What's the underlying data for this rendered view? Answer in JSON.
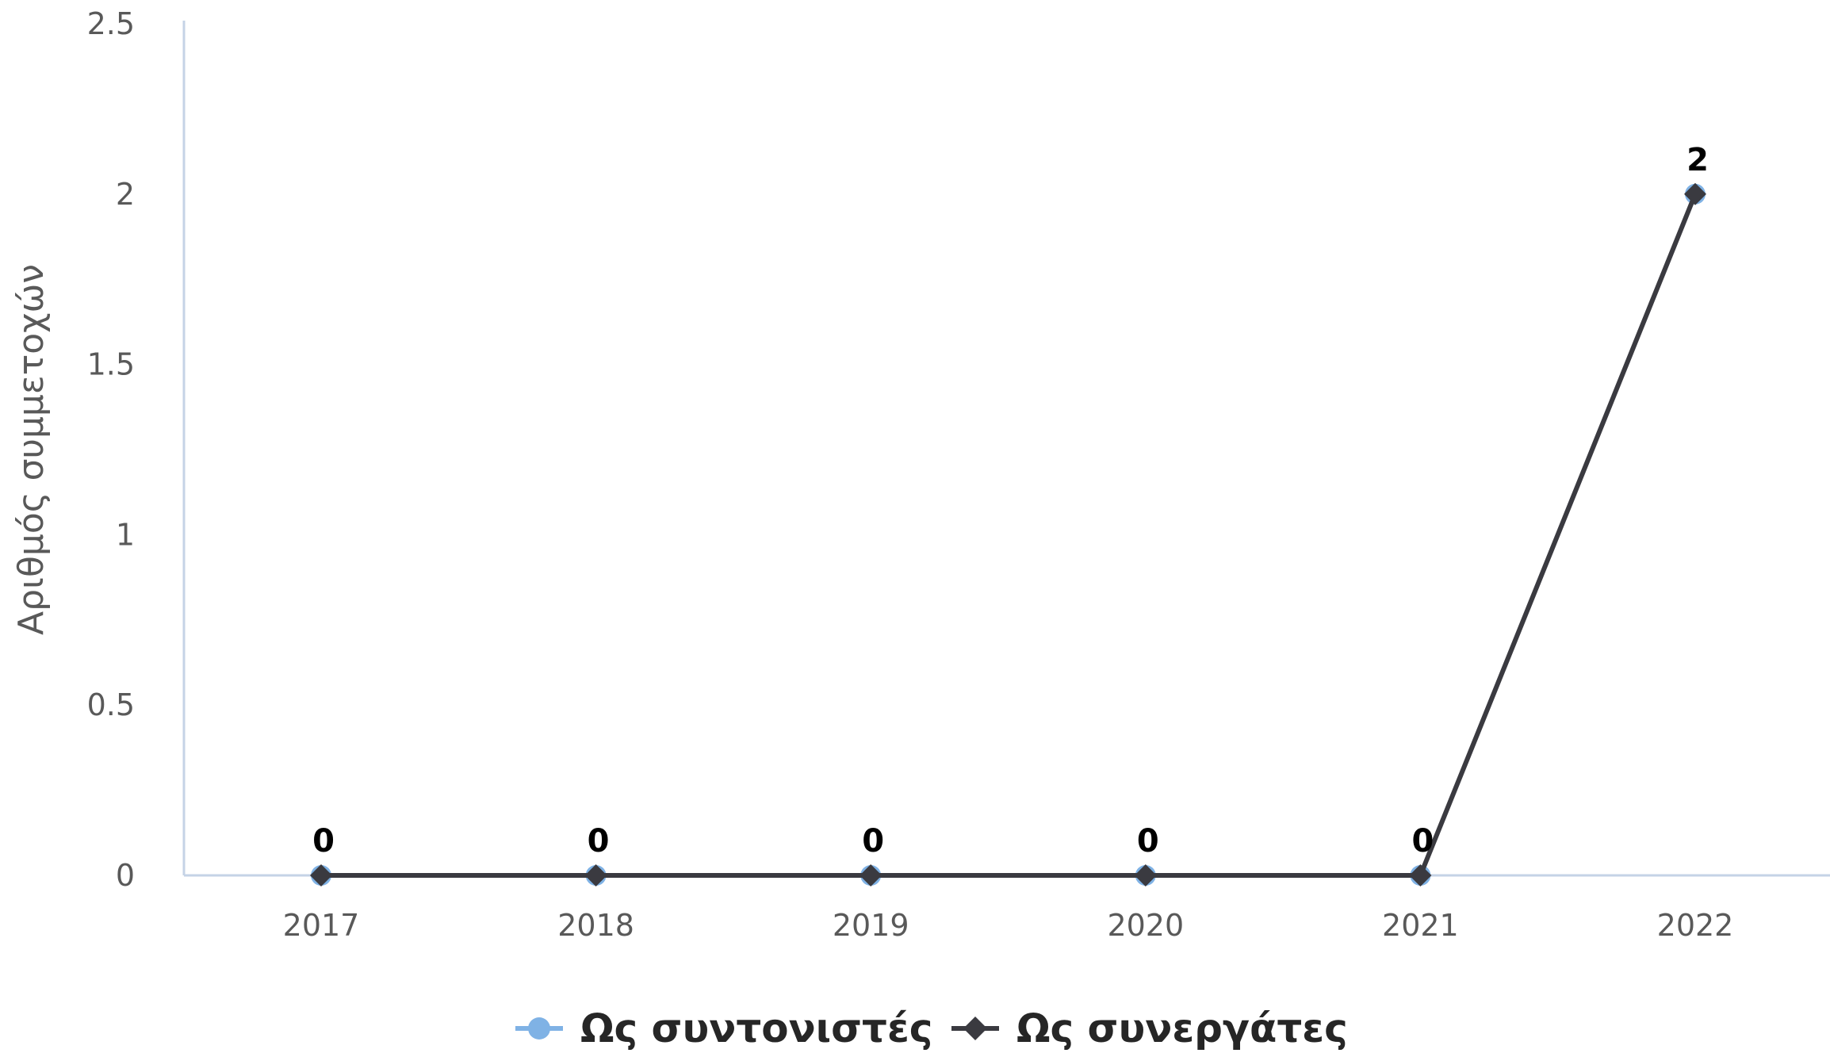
{
  "chart_data": {
    "type": "line",
    "title": "",
    "xlabel": "",
    "ylabel": "Αριθμός συμμετοχών",
    "categories": [
      "2017",
      "2018",
      "2019",
      "2020",
      "2021",
      "2022"
    ],
    "ylim": [
      0,
      2.5
    ],
    "yticks": [
      "0",
      "0.5",
      "1",
      "1.5",
      "2",
      "2.5"
    ],
    "grid": false,
    "legend_position": "bottom",
    "series": [
      {
        "name": "Ως συντονιστές",
        "values": [
          0,
          0,
          0,
          0,
          0,
          2
        ],
        "marker": "circle",
        "color": "#7fb2e5"
      },
      {
        "name": "Ως συνεργάτες",
        "values": [
          0,
          0,
          0,
          0,
          0,
          2
        ],
        "marker": "diamond",
        "color": "#3a3a40"
      }
    ],
    "data_labels": [
      "0",
      "0",
      "0",
      "0",
      "0",
      "2"
    ],
    "axis_color": "#c5d3e6"
  }
}
